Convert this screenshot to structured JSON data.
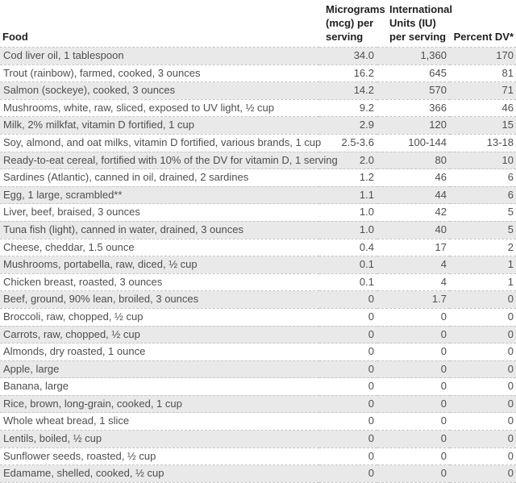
{
  "style": {
    "stripe_color": "#e9e9e9",
    "border_color": "#c6c6c6",
    "header_text_color": "#212121",
    "body_text_color": "#4f4f4f",
    "page_bg": "#ffffff"
  },
  "header": {
    "food_label": "Food",
    "mcg_lines": [
      "Micrograms",
      "(mcg) per",
      "serving"
    ],
    "iu_lines": [
      "International",
      "Units (IU)",
      "per serving"
    ],
    "dv_label": "Percent DV*"
  },
  "chart_data": {
    "type": "table",
    "columns": [
      "Food",
      "Micrograms (mcg) per serving",
      "International Units (IU) per serving",
      "Percent DV*"
    ],
    "rows": [
      [
        "Cod liver oil, 1 tablespoon",
        "34.0",
        "1,360",
        "170"
      ],
      [
        "Trout (rainbow), farmed, cooked, 3 ounces",
        "16.2",
        "645",
        "81"
      ],
      [
        "Salmon (sockeye), cooked, 3 ounces",
        "14.2",
        "570",
        "71"
      ],
      [
        "Mushrooms, white, raw, sliced, exposed to UV light, ½ cup",
        "9.2",
        "366",
        "46"
      ],
      [
        "Milk, 2% milkfat, vitamin D fortified, 1 cup",
        "2.9",
        "120",
        "15"
      ],
      [
        "Soy, almond, and oat milks, vitamin D fortified, various brands, 1 cup",
        "2.5-3.6",
        "100-144",
        "13-18"
      ],
      [
        "Ready-to-eat cereal, fortified with 10% of the DV for vitamin D, 1 serving",
        "2.0",
        "80",
        "10"
      ],
      [
        "Sardines (Atlantic), canned in oil, drained, 2 sardines",
        "1.2",
        "46",
        "6"
      ],
      [
        "Egg, 1 large, scrambled**",
        "1.1",
        "44",
        "6"
      ],
      [
        "Liver, beef, braised, 3 ounces",
        "1.0",
        "42",
        "5"
      ],
      [
        "Tuna fish (light), canned in water, drained, 3 ounces",
        "1.0",
        "40",
        "5"
      ],
      [
        "Cheese, cheddar, 1.5 ounce",
        "0.4",
        "17",
        "2"
      ],
      [
        "Mushrooms, portabella, raw, diced, ½ cup",
        "0.1",
        "4",
        "1"
      ],
      [
        "Chicken breast, roasted, 3 ounces",
        "0.1",
        "4",
        "1"
      ],
      [
        "Beef, ground, 90% lean, broiled, 3 ounces",
        "0",
        "1.7",
        "0"
      ],
      [
        "Broccoli, raw, chopped, ½ cup",
        "0",
        "0",
        "0"
      ],
      [
        "Carrots, raw, chopped, ½ cup",
        "0",
        "0",
        "0"
      ],
      [
        "Almonds, dry roasted, 1 ounce",
        "0",
        "0",
        "0"
      ],
      [
        "Apple, large",
        "0",
        "0",
        "0"
      ],
      [
        "Banana, large",
        "0",
        "0",
        "0"
      ],
      [
        "Rice, brown, long-grain, cooked, 1 cup",
        "0",
        "0",
        "0"
      ],
      [
        "Whole wheat bread, 1 slice",
        "0",
        "0",
        "0"
      ],
      [
        "Lentils, boiled, ½ cup",
        "0",
        "0",
        "0"
      ],
      [
        "Sunflower seeds, roasted, ½ cup",
        "0",
        "0",
        "0"
      ],
      [
        "Edamame, shelled, cooked, ½ cup",
        "0",
        "0",
        "0"
      ]
    ]
  }
}
